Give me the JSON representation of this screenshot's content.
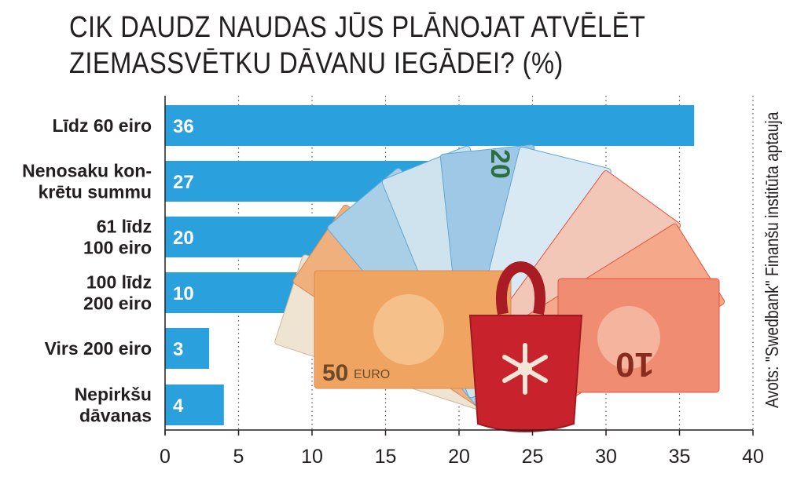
{
  "title_lines": [
    "CIK DAUDZ NAUDAS JŪS PLĀNOJAT ATVĒLĒT",
    "ZIEMASSVĒTKU DĀVANU IEGĀDEI? (%)"
  ],
  "source": "Avots: \"Swedbank\" Finanšu institūta aptauja",
  "colors": {
    "bar": "#2aa1dc",
    "note_50": "#e58a45",
    "note_20": "#5fa8d6",
    "note_10": "#e1543f",
    "bag": "#c8232c"
  },
  "illustration_texts": [
    "50",
    "EURO",
    "20",
    "10"
  ],
  "chart_data": {
    "type": "bar",
    "orientation": "horizontal",
    "categories": [
      [
        "Līdz 60 eiro"
      ],
      [
        "Nenosaku kon-",
        "krētu summu"
      ],
      [
        "61 līdz",
        "100 eiro"
      ],
      [
        "100 līdz",
        "200 eiro"
      ],
      [
        "Virs 200 eiro"
      ],
      [
        "Nepirkšu",
        "dāvanas"
      ]
    ],
    "values": [
      36,
      27,
      20,
      10,
      3,
      4
    ],
    "xlim": [
      0,
      40
    ],
    "xticks": [
      0,
      5,
      10,
      15,
      20,
      25,
      30,
      35,
      40
    ],
    "title": "CIK DAUDZ NAUDAS JŪS PLĀNOJAT ATVĒLĒT ZIEMASSVĒTKU DĀVANU IEGĀDEI? (%)",
    "xlabel": "",
    "ylabel": "",
    "grid": "vertical dotted",
    "legend": "none"
  }
}
